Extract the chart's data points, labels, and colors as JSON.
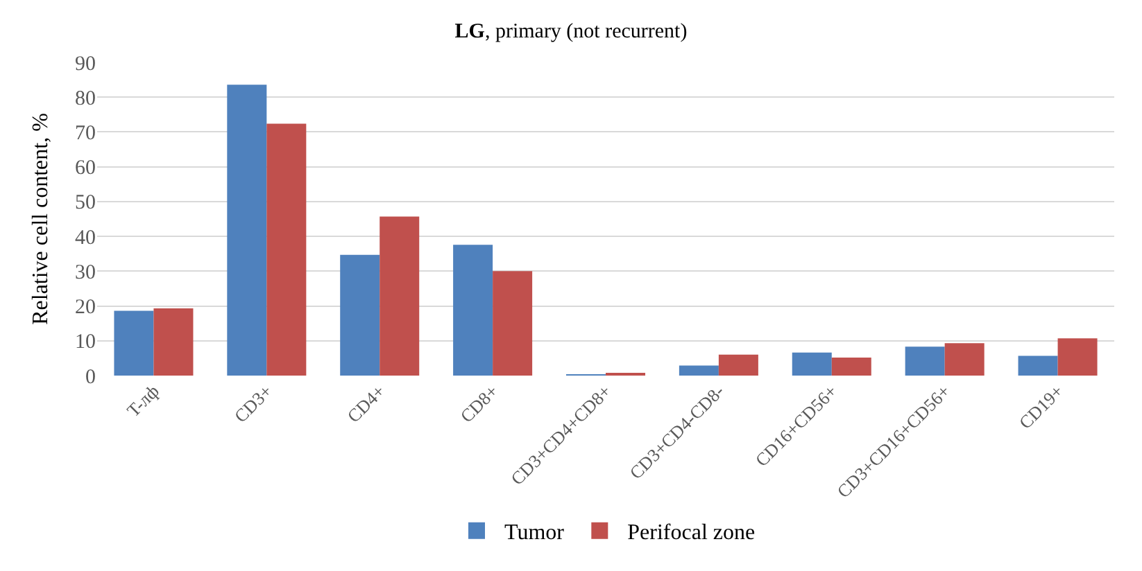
{
  "chart_data": {
    "type": "bar",
    "title": "LG, primary (not recurrent)",
    "ylabel": "Relative cell content, %",
    "categories": [
      "T-лф",
      "CD3+",
      "CD4+",
      "CD8+",
      "CD3+CD4+CD8+",
      "CD3+CD4-CD8-",
      "CD16+CD56+",
      "CD3+CD16+CD56+",
      "CD19+"
    ],
    "series": [
      {
        "name": "Tumor",
        "color": "#4f81bd",
        "values": [
          18.6,
          83.6,
          34.7,
          37.6,
          0.3,
          2.9,
          6.6,
          8.3,
          5.7
        ]
      },
      {
        "name": "Perifocal zone",
        "color": "#c0504d",
        "values": [
          19.3,
          72.4,
          45.7,
          30,
          0.5,
          6,
          5.2,
          9.3,
          10.7
        ]
      }
    ],
    "ylim": [
      0,
      90
    ],
    "yticks": [
      0,
      10,
      20,
      30,
      40,
      50,
      60,
      70,
      80,
      90
    ],
    "grid": "y",
    "legend": "bottom"
  }
}
